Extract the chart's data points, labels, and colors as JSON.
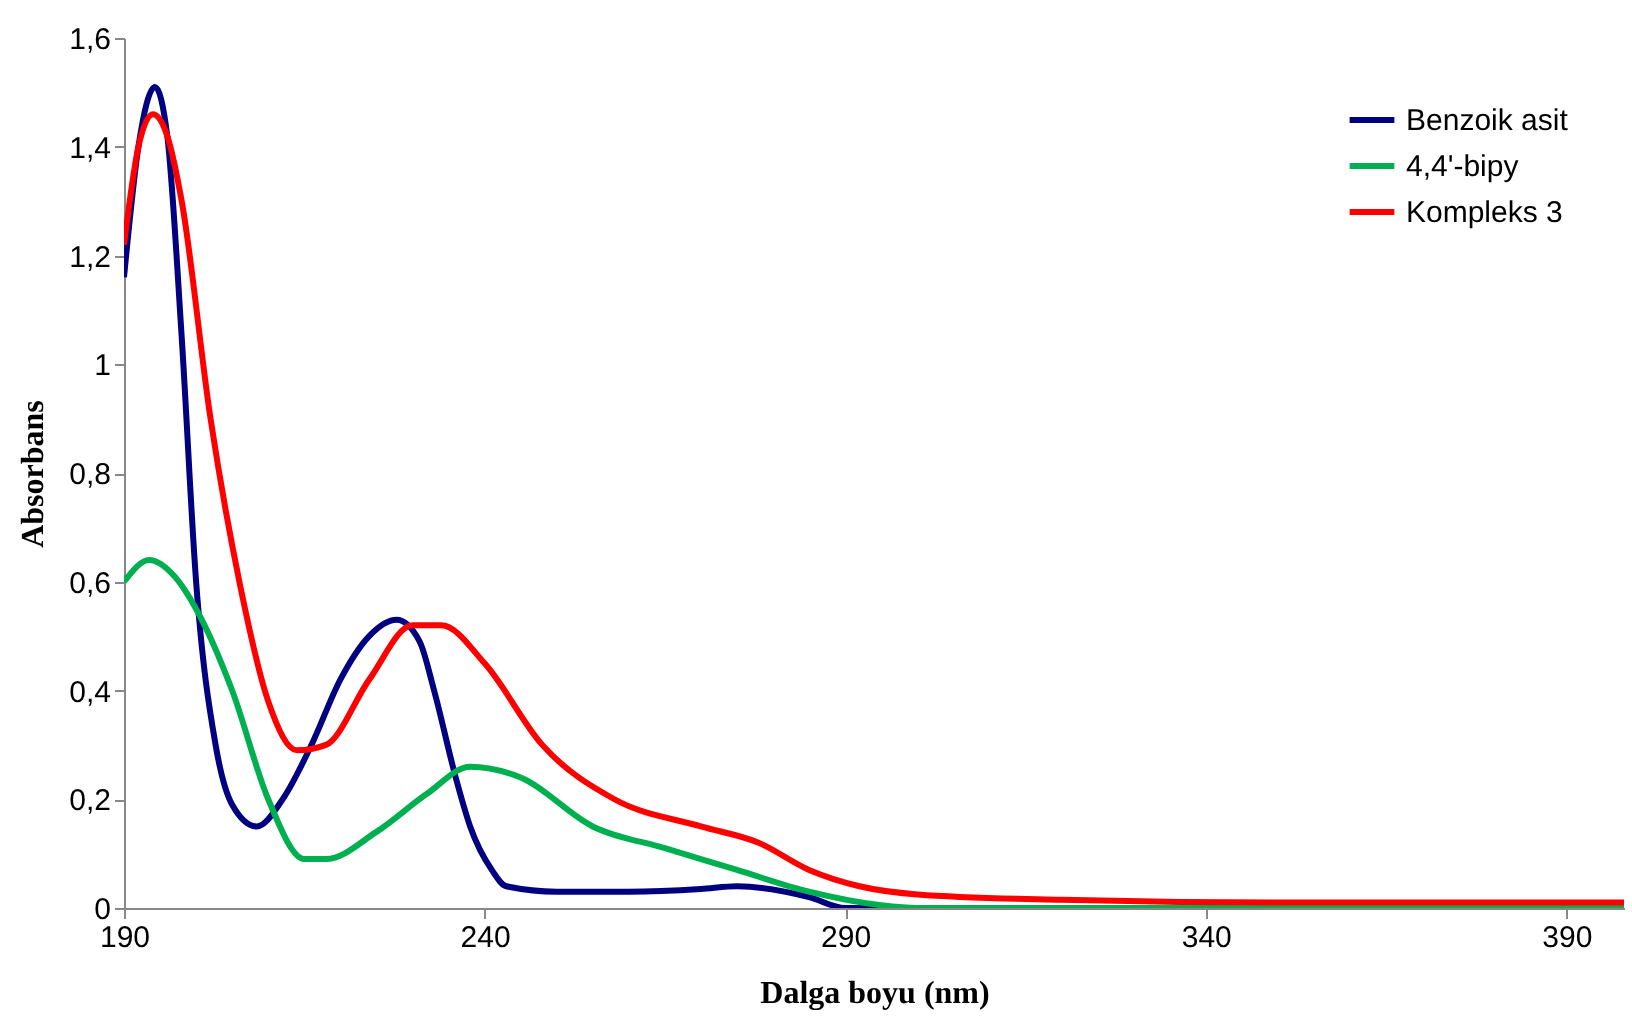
{
  "chart_data": {
    "type": "line",
    "xlabel": "Dalga boyu (nm)",
    "ylabel": "Absorbans",
    "xlim": [
      190,
      398
    ],
    "xticks": [
      190,
      240,
      290,
      340,
      390
    ],
    "ylim": [
      0,
      1.6
    ],
    "yticks": [
      0,
      {
        "value": 0.2,
        "label": "0,2"
      },
      {
        "value": 0.4,
        "label": "0,4"
      },
      {
        "value": 0.6,
        "label": "0,6"
      },
      {
        "value": 0.8,
        "label": "0,8"
      },
      1,
      {
        "value": 1.2,
        "label": "1,2"
      },
      {
        "value": 1.4,
        "label": "1,4"
      },
      {
        "value": 1.6,
        "label": "1,6"
      }
    ],
    "grid": false,
    "legend": "top right",
    "marker": "none",
    "line_style": "solid",
    "series": [
      {
        "name": "Benzoik asit",
        "color": "#000080",
        "x": [
          190,
          192,
          194.3,
          196,
          198,
          200,
          202.7,
          205,
          208.4,
          212,
          216,
          220,
          224,
          227.8,
          231,
          233,
          236,
          238,
          241,
          243,
          250,
          260,
          270,
          275,
          285,
          290,
          398
        ],
        "values": [
          1.16,
          1.4,
          1.51,
          1.42,
          1.05,
          0.6,
          0.3,
          0.19,
          0.15,
          0.2,
          0.3,
          0.42,
          0.5,
          0.53,
          0.49,
          0.4,
          0.24,
          0.15,
          0.07,
          0.04,
          0.03,
          0.03,
          0.035,
          0.04,
          0.02,
          0,
          0
        ]
      },
      {
        "name": "4,4'-bipy",
        "color": "#00b050",
        "x": [
          190,
          193.5,
          197,
          200,
          205,
          210,
          215,
          218,
          225,
          232,
          238,
          245,
          255,
          265,
          275,
          285,
          295,
          300,
          398
        ],
        "values": [
          0.6,
          0.64,
          0.61,
          0.55,
          0.4,
          0.2,
          0.09,
          0.09,
          0.14,
          0.21,
          0.26,
          0.24,
          0.15,
          0.11,
          0.07,
          0.03,
          0.005,
          0,
          0
        ]
      },
      {
        "name": "Kompleks 3",
        "color": "#ff0000",
        "x": [
          190,
          192,
          194,
          196,
          198,
          202,
          206,
          210,
          214,
          218,
          224,
          230,
          234,
          240,
          248,
          258,
          270,
          278,
          285,
          292,
          300,
          320,
          350,
          398
        ],
        "values": [
          1.22,
          1.4,
          1.46,
          1.42,
          1.3,
          0.9,
          0.6,
          0.38,
          0.29,
          0.3,
          0.42,
          0.52,
          0.52,
          0.45,
          0.3,
          0.2,
          0.15,
          0.12,
          0.07,
          0.04,
          0.025,
          0.015,
          0.01,
          0.01
        ]
      }
    ]
  }
}
